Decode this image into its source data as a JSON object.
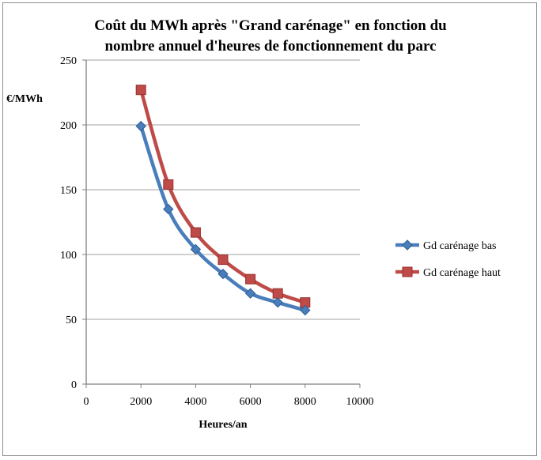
{
  "chart_data": {
    "type": "line",
    "title_lines": [
      "Coût du MWh après \"Grand carénage\" en fonction du",
      "nombre annuel d'heures de fonctionnement du parc"
    ],
    "xlabel": "Heures/an",
    "ylabel": "€/MWh",
    "xlim": [
      0,
      10000
    ],
    "ylim": [
      0,
      250
    ],
    "x_ticks": [
      "0",
      "2000",
      "4000",
      "6000",
      "8000",
      "10000"
    ],
    "y_ticks": [
      "0",
      "50",
      "100",
      "150",
      "200",
      "250"
    ],
    "grid": "horizontal",
    "legend_position": "right",
    "x": [
      2000,
      3000,
      4000,
      5000,
      6000,
      7000,
      8000
    ],
    "series": [
      {
        "name": "Gd carénage bas",
        "marker": "diamond",
        "color": "#4a7ebb",
        "values": [
          199,
          135,
          104,
          85,
          70,
          63,
          57
        ]
      },
      {
        "name": "Gd carénage haut",
        "marker": "square",
        "color": "#be4b48",
        "values": [
          227,
          154,
          117,
          96,
          81,
          70,
          63
        ]
      }
    ]
  }
}
